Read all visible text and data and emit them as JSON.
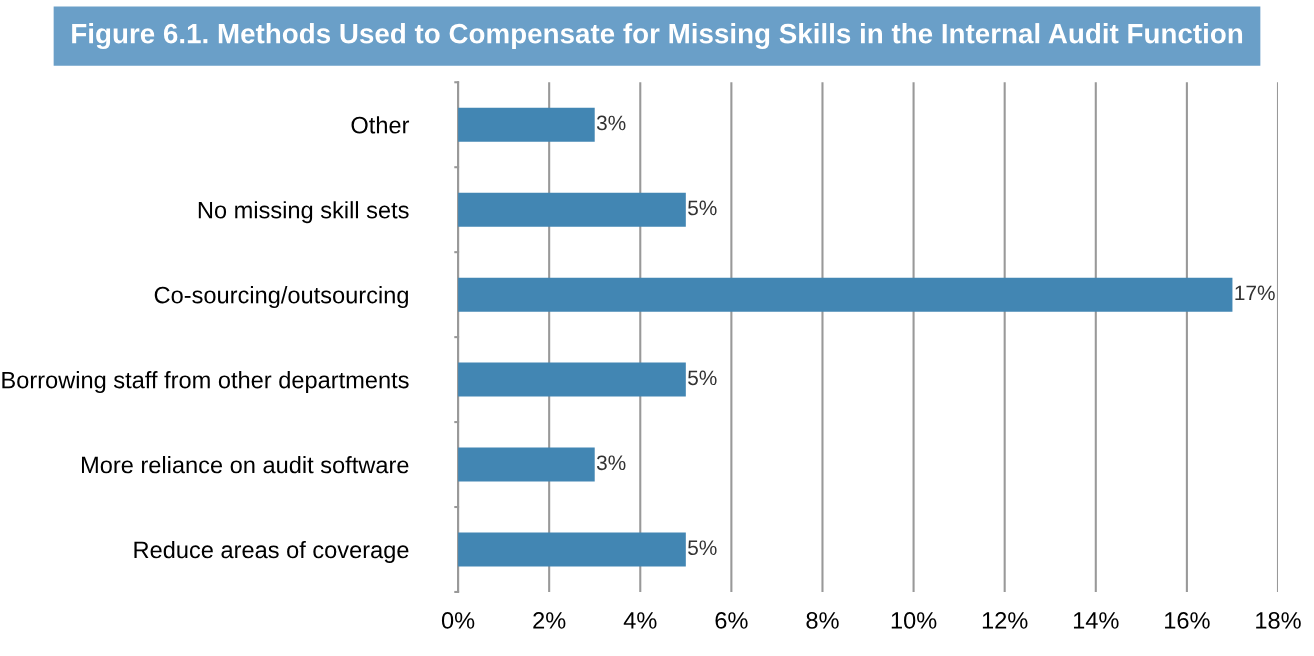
{
  "chart_data": {
    "type": "bar",
    "orientation": "horizontal",
    "title": "Figure 6.1. Methods Used to Compensate for Missing Skills in the Internal Audit Function",
    "categories": [
      "Other",
      "No missing skill sets",
      "Co-sourcing/outsourcing",
      "Borrowing staff from other departments",
      "More reliance on audit software",
      "Reduce areas of coverage"
    ],
    "values": [
      3,
      5,
      17,
      5,
      3,
      5
    ],
    "value_labels": [
      "3%",
      "5%",
      "17%",
      "5%",
      "3%",
      "5%"
    ],
    "color": "#4286b3",
    "xlim": [
      0,
      18
    ],
    "xticks": [
      {
        "value": 0,
        "label": "0%"
      },
      {
        "value": 2,
        "label": "2%"
      },
      {
        "value": 4,
        "label": "4%"
      },
      {
        "value": 6,
        "label": "6%"
      },
      {
        "value": 8,
        "label": "8%"
      },
      {
        "value": 10,
        "label": "10%"
      },
      {
        "value": 12,
        "label": "12%"
      },
      {
        "value": 14,
        "label": "14%"
      },
      {
        "value": 16,
        "label": "16%"
      },
      {
        "value": 18,
        "label": "18%"
      }
    ],
    "grid": "x",
    "legend": false
  }
}
